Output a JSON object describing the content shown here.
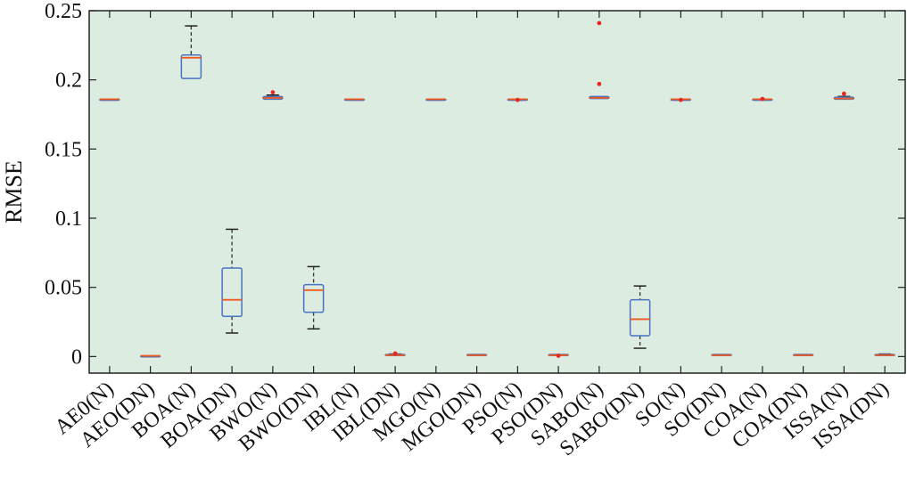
{
  "chart_data": {
    "type": "box",
    "title": "",
    "xlabel": "",
    "ylabel": "RMSE",
    "ylim": [
      -0.012,
      0.25
    ],
    "yticks": [
      0,
      0.05,
      0.1,
      0.15,
      0.2,
      0.25
    ],
    "ytick_labels": [
      "0",
      "0.05",
      "0.1",
      "0.15",
      "0.2",
      "0.25"
    ],
    "grid": false,
    "background_color": "#dcece0",
    "box_color": "#4a72c4",
    "median_color": "#f05a1e",
    "whisker_color": "#333333",
    "outlier_color": "#e8281e",
    "categories": [
      "AE0(N)",
      "AEO(DN)",
      "BOA(N)",
      "BOA(DN)",
      "BWO(N)",
      "BWO(DN)",
      "IBL(N)",
      "IBL(DN)",
      "MGO(N)",
      "MGO(DN)",
      "PSO(N)",
      "PSO(DN)",
      "SABO(N)",
      "SABO(DN)",
      "SO(N)",
      "SO(DN)",
      "COA(N)",
      "COA(DN)",
      "ISSA(N)",
      "ISSA(DN)"
    ],
    "boxes": [
      {
        "min": 0.186,
        "q1": 0.186,
        "median": 0.186,
        "q3": 0.186,
        "max": 0.186,
        "outliers": []
      },
      {
        "min": 0.0005,
        "q1": 0.0005,
        "median": 0.0005,
        "q3": 0.0005,
        "max": 0.0005,
        "outliers": []
      },
      {
        "min": 0.201,
        "q1": 0.201,
        "median": 0.216,
        "q3": 0.218,
        "max": 0.239,
        "outliers": []
      },
      {
        "min": 0.017,
        "q1": 0.029,
        "median": 0.041,
        "q3": 0.064,
        "max": 0.092,
        "outliers": []
      },
      {
        "min": 0.186,
        "q1": 0.186,
        "median": 0.187,
        "q3": 0.188,
        "max": 0.189,
        "outliers": [
          0.191
        ]
      },
      {
        "min": 0.02,
        "q1": 0.032,
        "median": 0.048,
        "q3": 0.052,
        "max": 0.065,
        "outliers": []
      },
      {
        "min": 0.186,
        "q1": 0.186,
        "median": 0.186,
        "q3": 0.186,
        "max": 0.186,
        "outliers": []
      },
      {
        "min": 0.0008,
        "q1": 0.0008,
        "median": 0.001,
        "q3": 0.0015,
        "max": 0.0018,
        "outliers": [
          0.0022
        ]
      },
      {
        "min": 0.186,
        "q1": 0.186,
        "median": 0.186,
        "q3": 0.186,
        "max": 0.186,
        "outliers": []
      },
      {
        "min": 0.0008,
        "q1": 0.0008,
        "median": 0.001,
        "q3": 0.0015,
        "max": 0.0015,
        "outliers": []
      },
      {
        "min": 0.186,
        "q1": 0.186,
        "median": 0.186,
        "q3": 0.186,
        "max": 0.186,
        "outliers": [
          0.1855
        ]
      },
      {
        "min": 0.0008,
        "q1": 0.0008,
        "median": 0.001,
        "q3": 0.0015,
        "max": 0.0015,
        "outliers": [
          0.0006
        ]
      },
      {
        "min": 0.1865,
        "q1": 0.1865,
        "median": 0.187,
        "q3": 0.188,
        "max": 0.188,
        "outliers": [
          0.197,
          0.241
        ]
      },
      {
        "min": 0.006,
        "q1": 0.015,
        "median": 0.027,
        "q3": 0.041,
        "max": 0.051,
        "outliers": []
      },
      {
        "min": 0.186,
        "q1": 0.186,
        "median": 0.186,
        "q3": 0.186,
        "max": 0.186,
        "outliers": [
          0.1855
        ]
      },
      {
        "min": 0.0008,
        "q1": 0.0008,
        "median": 0.001,
        "q3": 0.0015,
        "max": 0.0015,
        "outliers": []
      },
      {
        "min": 0.186,
        "q1": 0.186,
        "median": 0.186,
        "q3": 0.186,
        "max": 0.186,
        "outliers": [
          0.1862
        ]
      },
      {
        "min": 0.0008,
        "q1": 0.0008,
        "median": 0.001,
        "q3": 0.0015,
        "max": 0.0015,
        "outliers": []
      },
      {
        "min": 0.186,
        "q1": 0.186,
        "median": 0.1865,
        "q3": 0.1875,
        "max": 0.188,
        "outliers": [
          0.19
        ]
      },
      {
        "min": 0.0008,
        "q1": 0.0008,
        "median": 0.001,
        "q3": 0.0015,
        "max": 0.0018,
        "outliers": []
      }
    ]
  }
}
